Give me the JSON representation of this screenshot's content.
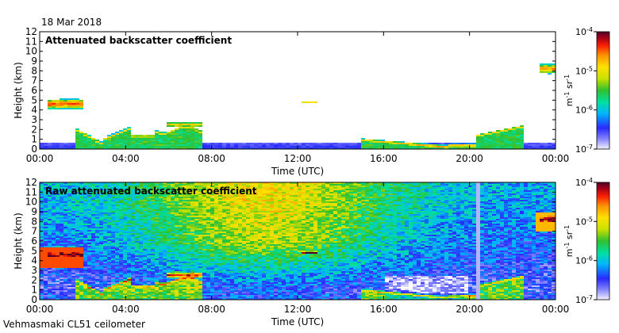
{
  "date_label": "18 Mar 2018",
  "footer_label": "Vehmasmaki CL51 ceilometer",
  "chart_data": [
    {
      "type": "heatmap",
      "title": "Attenuated backscatter coefficient",
      "xlabel": "Time (UTC)",
      "ylabel": "Height (km)",
      "xlim": [
        0,
        24
      ],
      "ylim": [
        0,
        12
      ],
      "x_ticks": [
        "00:00",
        "04:00",
        "08:00",
        "12:00",
        "16:00",
        "20:00",
        "00:00"
      ],
      "y_ticks": [
        "0",
        "1",
        "2",
        "3",
        "4",
        "5",
        "6",
        "7",
        "8",
        "9",
        "10",
        "11",
        "12"
      ],
      "colorbar": {
        "label_base": "m",
        "label_exp1": "-1",
        "label_unit": "sr",
        "label_exp2": "-1",
        "scale": "log",
        "range": [
          1e-07,
          0.0001
        ],
        "ticks": [
          {
            "base": "10",
            "exp": "-4",
            "value": -4
          },
          {
            "base": "10",
            "exp": "-5",
            "value": -5
          },
          {
            "base": "10",
            "exp": "-6",
            "value": -6
          },
          {
            "base": "10",
            "exp": "-7",
            "value": -7
          }
        ],
        "colors": [
          "#f2f2ff",
          "#8080ff",
          "#2a2aff",
          "#00b4ff",
          "#00e0a0",
          "#30c030",
          "#c8e000",
          "#ffe000",
          "#ff9000",
          "#ff2000",
          "#a0001a",
          "#500028"
        ]
      }
    },
    {
      "type": "heatmap",
      "title": "Raw attenuated backscatter coefficient",
      "xlabel": "Time (UTC)",
      "ylabel": "Height (km)",
      "xlim": [
        0,
        24
      ],
      "ylim": [
        0,
        12
      ],
      "x_ticks": [
        "00:00",
        "04:00",
        "08:00",
        "12:00",
        "16:00",
        "20:00",
        "00:00"
      ],
      "y_ticks": [
        "0",
        "1",
        "2",
        "3",
        "4",
        "5",
        "6",
        "7",
        "8",
        "9",
        "10",
        "11",
        "12"
      ],
      "colorbar": {
        "label_base": "m",
        "label_exp1": "-1",
        "label_unit": "sr",
        "label_exp2": "-1",
        "scale": "log",
        "range": [
          1e-07,
          0.0001
        ],
        "ticks": [
          {
            "base": "10",
            "exp": "-4",
            "value": -4
          },
          {
            "base": "10",
            "exp": "-5",
            "value": -5
          },
          {
            "base": "10",
            "exp": "-6",
            "value": -6
          },
          {
            "base": "10",
            "exp": "-7",
            "value": -7
          }
        ],
        "colors": [
          "#f2f2ff",
          "#8080ff",
          "#2a2aff",
          "#00b4ff",
          "#00e0a0",
          "#30c030",
          "#c8e000",
          "#ffe000",
          "#ff9000",
          "#ff2000",
          "#a0001a",
          "#500028"
        ]
      }
    }
  ]
}
